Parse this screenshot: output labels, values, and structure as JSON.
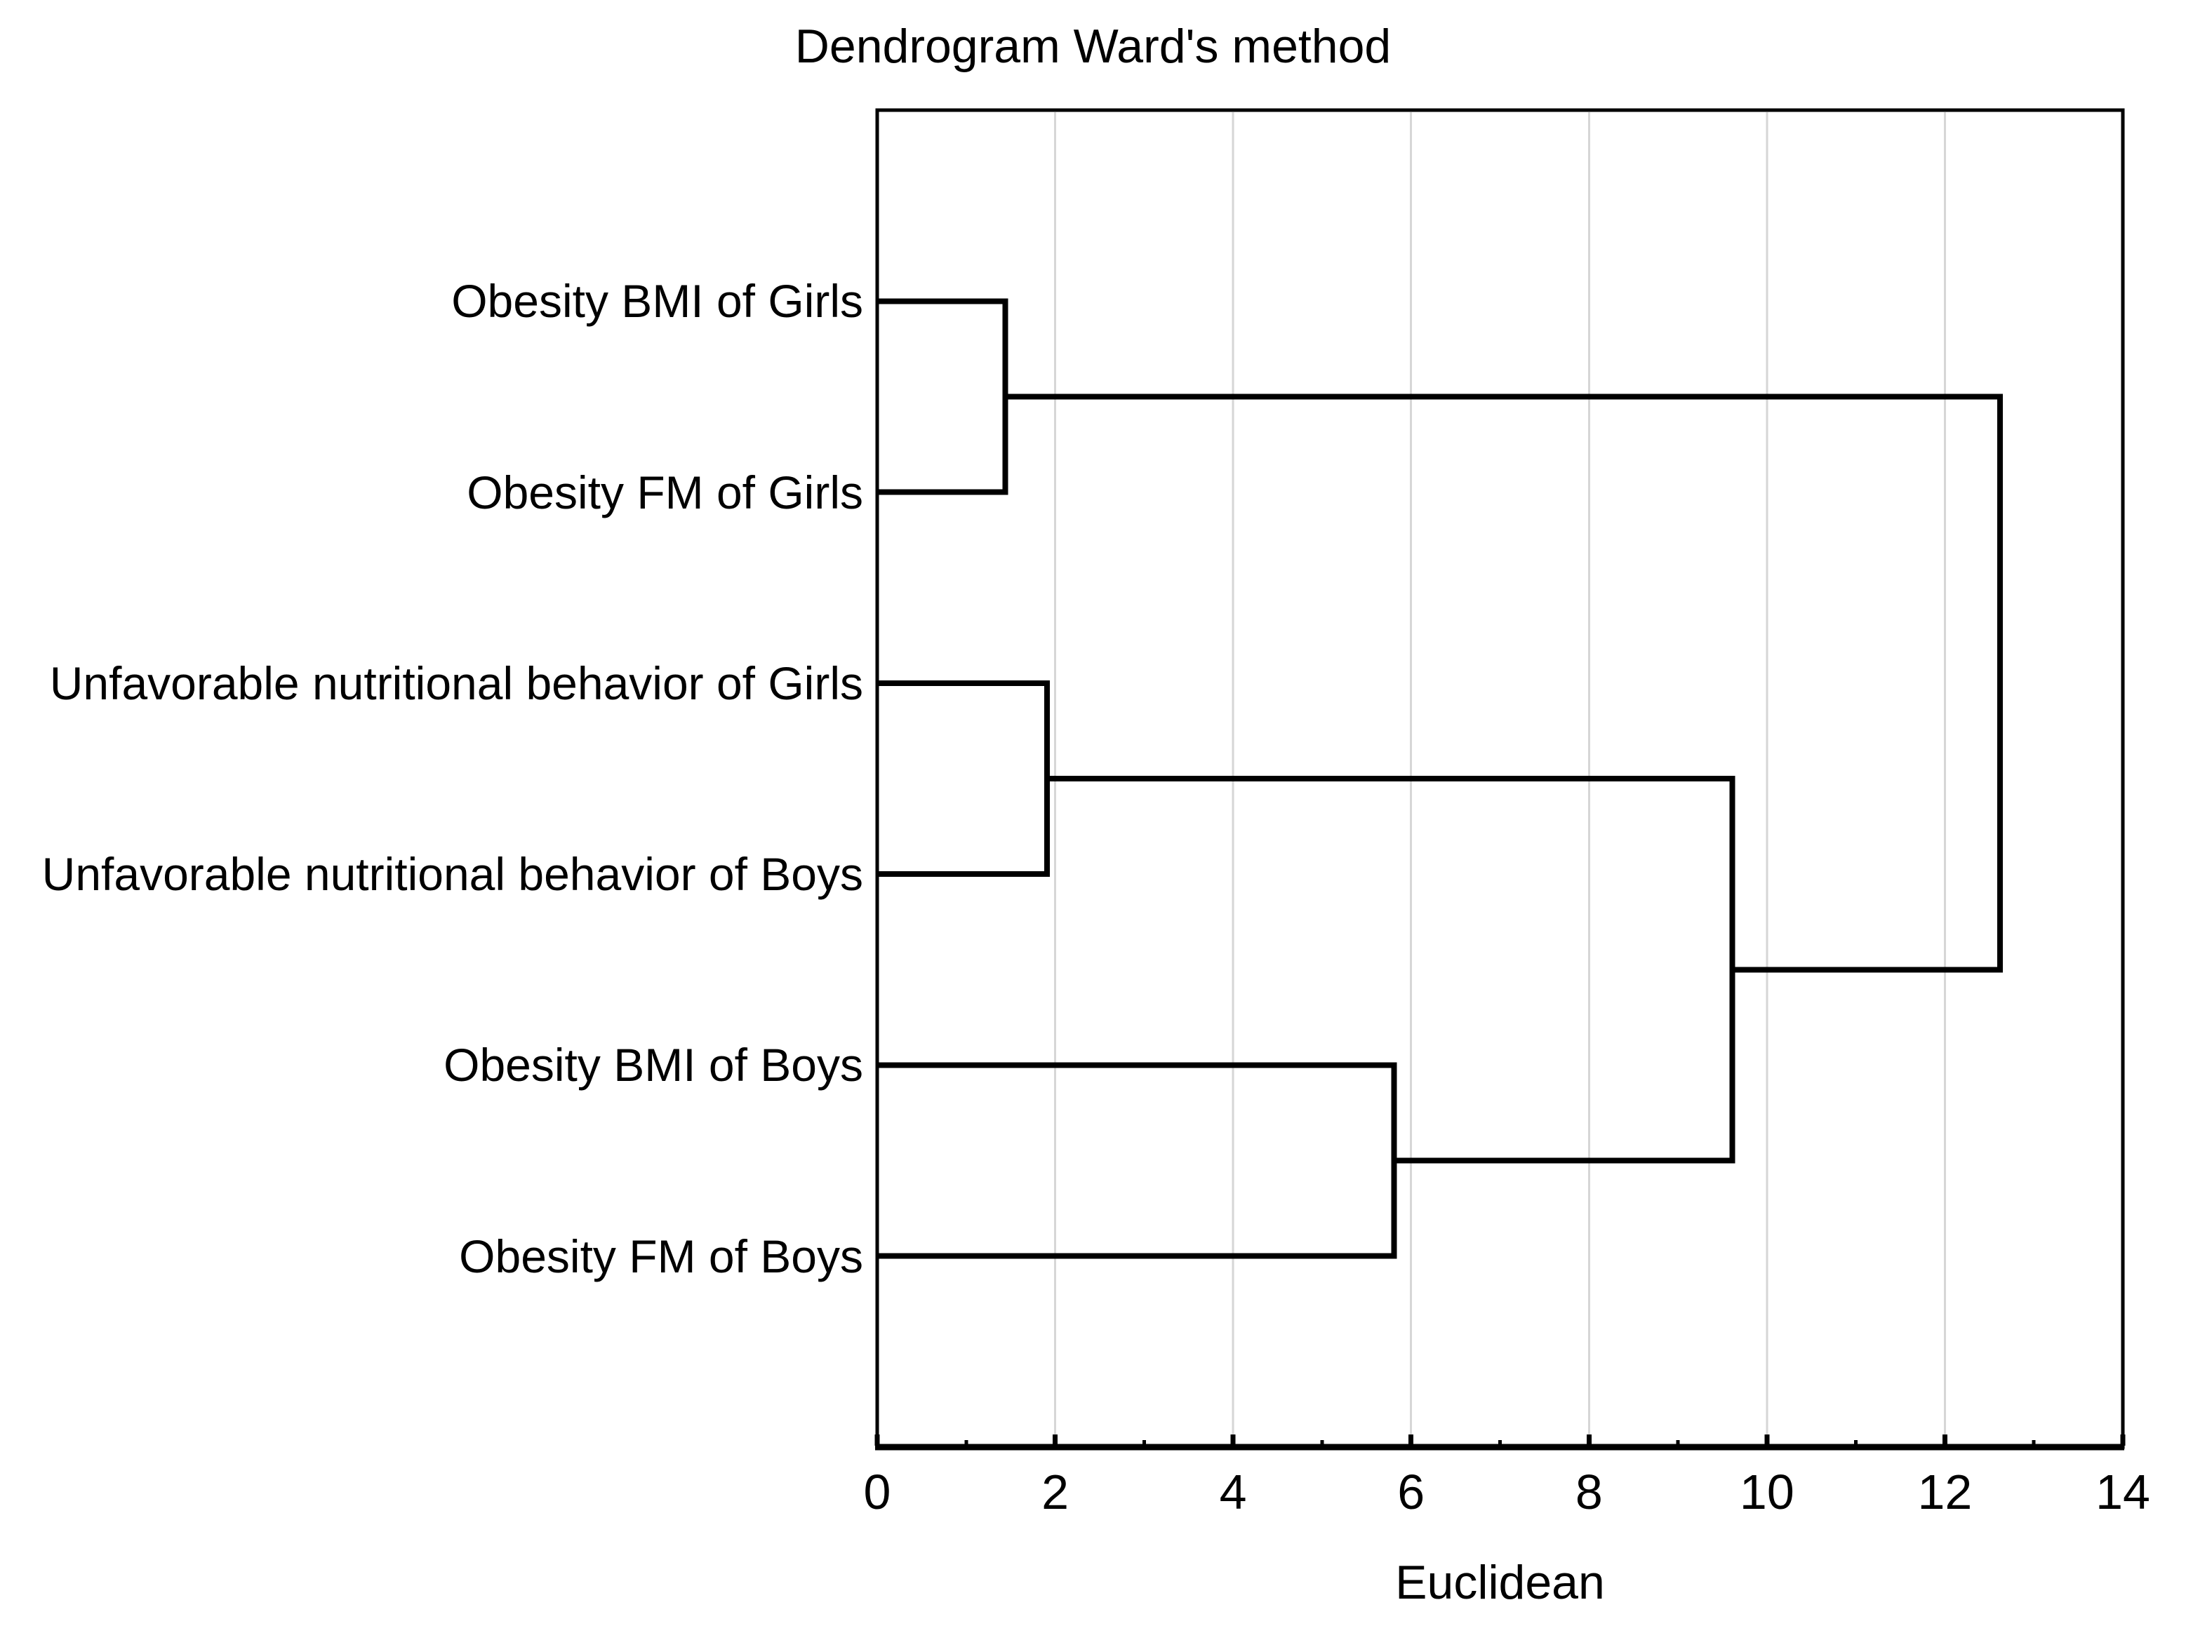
{
  "figure": {
    "title": "Dendrogram Ward's method"
  },
  "axis": {
    "label": "Euclidean",
    "min": 0,
    "max": 14,
    "major_ticks": [
      0,
      2,
      4,
      6,
      8,
      10,
      12,
      14
    ],
    "minor_ticks": [
      1,
      3,
      5,
      7,
      9,
      11,
      13
    ],
    "gridlines": [
      2,
      4,
      6,
      8,
      10,
      12
    ]
  },
  "colors": {
    "line": "#000000",
    "gridline": "#d6d6d6",
    "background": "#ffffff",
    "text": "#000000"
  },
  "chart_data": {
    "type": "dendrogram",
    "orientation": "horizontal",
    "title": "Dendrogram Ward's method",
    "xlabel": "Euclidean",
    "xlim": [
      0,
      14
    ],
    "grid": "vertical-gridlines-at-even-values",
    "legend": "none",
    "linkage_method": "Ward's method",
    "distance_metric": "Euclidean",
    "leaves": [
      "Obesity BMI of Girls",
      "Obesity FM of Girls",
      "Unfavorable nutritional behavior of Girls",
      "Unfavorable nutritional behavior of Boys",
      "Obesity BMI of Boys",
      "Obesity FM of Boys"
    ],
    "merges": [
      {
        "id": "M1",
        "a": "L0",
        "b": "L1",
        "height": 1.44
      },
      {
        "id": "M2",
        "a": "L2",
        "b": "L3",
        "height": 1.91
      },
      {
        "id": "M3",
        "a": "L4",
        "b": "L5",
        "height": 5.81
      },
      {
        "id": "M4",
        "a": "M2",
        "b": "M3",
        "height": 9.61
      },
      {
        "id": "M5",
        "a": "M1",
        "b": "M4",
        "height": 12.62
      }
    ]
  }
}
